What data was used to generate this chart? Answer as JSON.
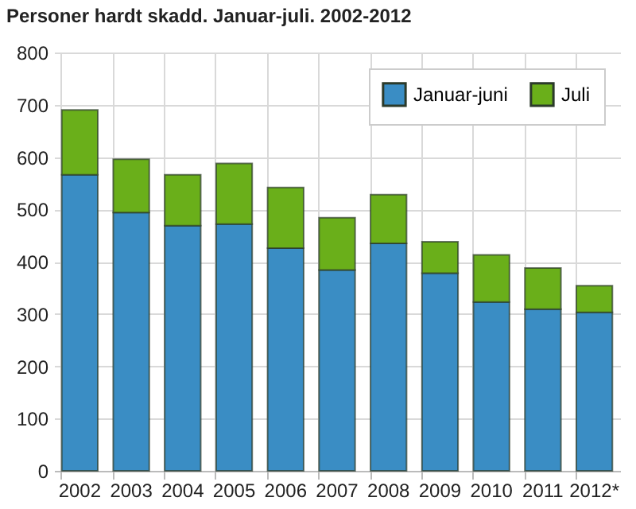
{
  "chart_data": {
    "type": "bar",
    "title": "Personer hardt skadd. Januar-juli. 2002-2012",
    "categories": [
      "2002",
      "2003",
      "2004",
      "2005",
      "2006",
      "2007",
      "2008",
      "2009",
      "2010",
      "2011",
      "2012*"
    ],
    "series": [
      {
        "name": "Januar-juni",
        "color": "#3a8dc4",
        "values": [
          566,
          494,
          469,
          472,
          426,
          384,
          435,
          378,
          323,
          309,
          303
        ]
      },
      {
        "name": "Juli",
        "color": "#6aaf1a",
        "values": [
          124,
          102,
          97,
          116,
          116,
          100,
          93,
          60,
          90,
          79,
          51
        ]
      }
    ],
    "stacked": true,
    "ylim": [
      0,
      800
    ],
    "yticks": [
      0,
      100,
      200,
      300,
      400,
      500,
      600,
      700,
      800
    ],
    "grid": true,
    "legend": "top right"
  }
}
